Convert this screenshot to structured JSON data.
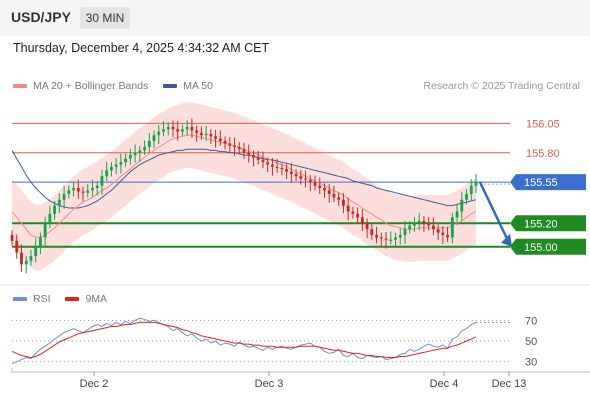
{
  "header": {
    "symbol": "USD/JPY",
    "timeframe": "30 MIN",
    "datetime": "Thursday, December 4, 2025 4:34:32 AM CET"
  },
  "legend": {
    "price": [
      {
        "label": "MA 20 + Bollinger Bands",
        "color": "#f08a83"
      },
      {
        "label": "MA 50",
        "color": "#3c5a99"
      }
    ],
    "indicator": [
      {
        "label": "RSI",
        "color": "#6c8fd8"
      },
      {
        "label": "9MA",
        "color": "#dd2222"
      }
    ],
    "copyright": "Research © 2025 Trading Central"
  },
  "chart_data": [
    {
      "type": "candlestick",
      "title": "USD/JPY",
      "x_tick_labels": [
        "Dec 2",
        "Dec 3",
        "Dec 4",
        "Dec 13"
      ],
      "ylim": [
        154.7,
        156.3
      ],
      "horizontal_levels": [
        {
          "value": 156.05,
          "label": "156.05",
          "color": "#e05a4f",
          "kind": "resistance"
        },
        {
          "value": 155.8,
          "label": "155.80",
          "color": "#e05a4f",
          "kind": "resistance"
        },
        {
          "value": 155.55,
          "label": "155.55",
          "color": "#3b6fcf",
          "kind": "current"
        },
        {
          "value": 155.2,
          "label": "155.20",
          "color": "#1f8a1f",
          "kind": "support"
        },
        {
          "value": 155.0,
          "label": "155.00",
          "color": "#1f8a1f",
          "kind": "support"
        }
      ],
      "forecast_arrow": {
        "from": 155.55,
        "to": 155.0,
        "direction": "down",
        "color": "#2f6ab8"
      },
      "close": [
        155.05,
        154.95,
        154.85,
        154.88,
        154.92,
        155.0,
        155.08,
        155.2,
        155.28,
        155.35,
        155.4,
        155.45,
        155.48,
        155.5,
        155.47,
        155.46,
        155.48,
        155.5,
        155.52,
        155.6,
        155.65,
        155.68,
        155.7,
        155.72,
        155.75,
        155.78,
        155.8,
        155.82,
        155.85,
        155.9,
        155.95,
        155.98,
        156.0,
        156.02,
        156.0,
        155.98,
        156.0,
        156.02,
        155.99,
        155.97,
        155.95,
        155.96,
        155.94,
        155.92,
        155.9,
        155.88,
        155.86,
        155.85,
        155.83,
        155.8,
        155.78,
        155.76,
        155.74,
        155.72,
        155.7,
        155.68,
        155.67,
        155.66,
        155.64,
        155.62,
        155.6,
        155.58,
        155.57,
        155.55,
        155.52,
        155.5,
        155.48,
        155.45,
        155.42,
        155.4,
        155.35,
        155.3,
        155.28,
        155.25,
        155.2,
        155.15,
        155.1,
        155.08,
        155.07,
        155.06,
        155.06,
        155.08,
        155.1,
        155.15,
        155.18,
        155.2,
        155.22,
        155.2,
        155.18,
        155.15,
        155.12,
        155.1,
        155.08,
        155.25,
        155.3,
        155.4,
        155.45,
        155.52,
        155.55
      ],
      "ma20": [
        155.3,
        155.25,
        155.2,
        155.15,
        155.1,
        155.08,
        155.08,
        155.1,
        155.13,
        155.16,
        155.2,
        155.24,
        155.28,
        155.32,
        155.35,
        155.38,
        155.4,
        155.42,
        155.45,
        155.48,
        155.5,
        155.53,
        155.56,
        155.6,
        155.63,
        155.66,
        155.7,
        155.73,
        155.76,
        155.79,
        155.82,
        155.85,
        155.87,
        155.9,
        155.92,
        155.93,
        155.94,
        155.95,
        155.95,
        155.94,
        155.93,
        155.92,
        155.91,
        155.9,
        155.89,
        155.88,
        155.87,
        155.86,
        155.84,
        155.83,
        155.81,
        155.8,
        155.78,
        155.76,
        155.75,
        155.73,
        155.71,
        155.7,
        155.68,
        155.66,
        155.64,
        155.62,
        155.6,
        155.58,
        155.56,
        155.54,
        155.52,
        155.5,
        155.48,
        155.46,
        155.44,
        155.41,
        155.38,
        155.36,
        155.33,
        155.3,
        155.28,
        155.25,
        155.23,
        155.2,
        155.18,
        155.17,
        155.16,
        155.15,
        155.15,
        155.15,
        155.16,
        155.16,
        155.16,
        155.16,
        155.16,
        155.16,
        155.16,
        155.18,
        155.2,
        155.22,
        155.25,
        155.28,
        155.3
      ],
      "ma50": [
        155.82,
        155.75,
        155.68,
        155.61,
        155.55,
        155.5,
        155.46,
        155.42,
        155.39,
        155.37,
        155.35,
        155.34,
        155.33,
        155.33,
        155.33,
        155.34,
        155.35,
        155.37,
        155.39,
        155.42,
        155.45,
        155.48,
        155.52,
        155.56,
        155.6,
        155.64,
        155.67,
        155.7,
        155.72,
        155.74,
        155.76,
        155.78,
        155.79,
        155.8,
        155.81,
        155.82,
        155.82,
        155.83,
        155.83,
        155.83,
        155.83,
        155.83,
        155.82,
        155.82,
        155.81,
        155.81,
        155.8,
        155.8,
        155.79,
        155.78,
        155.78,
        155.77,
        155.76,
        155.75,
        155.74,
        155.74,
        155.73,
        155.72,
        155.71,
        155.7,
        155.69,
        155.68,
        155.67,
        155.66,
        155.65,
        155.64,
        155.63,
        155.62,
        155.61,
        155.6,
        155.59,
        155.58,
        155.56,
        155.55,
        155.54,
        155.53,
        155.52,
        155.5,
        155.49,
        155.48,
        155.47,
        155.46,
        155.45,
        155.44,
        155.43,
        155.42,
        155.41,
        155.4,
        155.39,
        155.38,
        155.37,
        155.36,
        155.35,
        155.35,
        155.36,
        155.37,
        155.38,
        155.39,
        155.4
      ],
      "bb_width": 0.28
    },
    {
      "type": "line",
      "title": "RSI",
      "ylim": [
        20,
        80
      ],
      "y_tick_labels": [
        "70",
        "50",
        "30"
      ],
      "levels": [
        70,
        50,
        30
      ],
      "series": [
        {
          "name": "RSI",
          "color": "#6c8fd8",
          "values": [
            28,
            30,
            32,
            34,
            33,
            38,
            42,
            45,
            48,
            52,
            55,
            58,
            60,
            62,
            60,
            58,
            61,
            64,
            66,
            64,
            67,
            65,
            68,
            66,
            69,
            67,
            70,
            72,
            71,
            69,
            70,
            68,
            66,
            64,
            60,
            62,
            58,
            55,
            57,
            53,
            50,
            52,
            48,
            50,
            46,
            48,
            47,
            45,
            49,
            46,
            44,
            45,
            43,
            41,
            44,
            42,
            44,
            45,
            43,
            42,
            44,
            46,
            47,
            48,
            45,
            44,
            40,
            38,
            39,
            42,
            36,
            35,
            38,
            34,
            33,
            36,
            35,
            34,
            35,
            32,
            33,
            34,
            37,
            38,
            42,
            40,
            42,
            45,
            47,
            45,
            44,
            46,
            43,
            52,
            54,
            60,
            62,
            66,
            68
          ]
        },
        {
          "name": "9MA",
          "color": "#dd2222",
          "values": [
            40,
            38,
            36,
            35,
            34,
            35,
            37,
            40,
            43,
            46,
            49,
            51,
            53,
            55,
            57,
            58,
            59,
            60,
            61,
            62,
            63,
            64,
            64,
            65,
            66,
            66,
            67,
            68,
            68,
            68,
            68,
            67,
            66,
            65,
            64,
            63,
            61,
            60,
            58,
            57,
            55,
            54,
            53,
            52,
            51,
            50,
            49,
            48,
            48,
            47,
            47,
            46,
            46,
            45,
            45,
            45,
            44,
            44,
            44,
            44,
            44,
            45,
            45,
            45,
            45,
            44,
            43,
            42,
            41,
            41,
            40,
            39,
            38,
            38,
            37,
            36,
            36,
            35,
            35,
            34,
            34,
            34,
            35,
            35,
            36,
            37,
            38,
            39,
            40,
            41,
            42,
            43,
            43,
            45,
            46,
            48,
            50,
            52,
            54
          ]
        }
      ]
    }
  ]
}
